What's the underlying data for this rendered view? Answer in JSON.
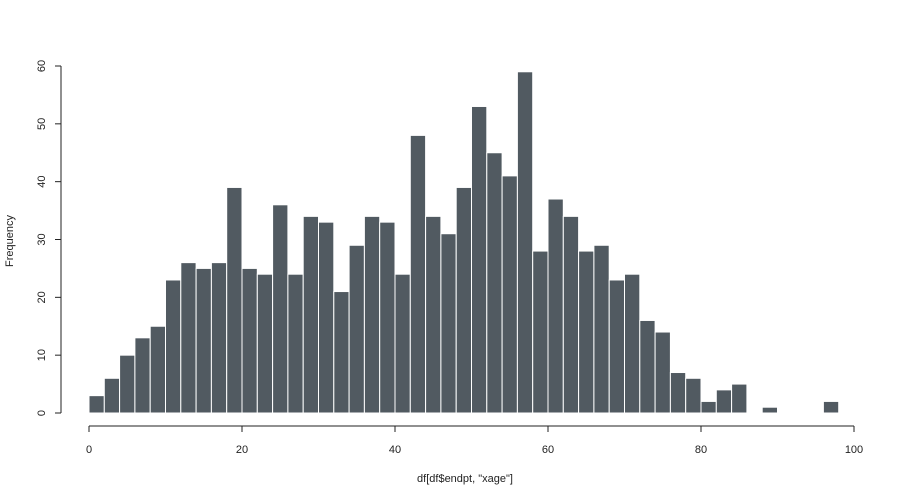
{
  "chart_data": {
    "type": "bar",
    "title": "",
    "xlabel": "df[df$endpt, \"xage\"]",
    "ylabel": "Frequency",
    "xlim": [
      0,
      100
    ],
    "ylim": [
      0,
      60
    ],
    "x_ticks": [
      "0",
      "20",
      "40",
      "60",
      "80",
      "100"
    ],
    "y_ticks": [
      "0",
      "10",
      "20",
      "30",
      "40",
      "50",
      "60"
    ],
    "bin_width": 2,
    "bin_starts": [
      0,
      2,
      4,
      6,
      8,
      10,
      12,
      14,
      16,
      18,
      20,
      22,
      24,
      26,
      28,
      30,
      32,
      34,
      36,
      38,
      40,
      42,
      44,
      46,
      48,
      50,
      52,
      54,
      56,
      58,
      60,
      62,
      64,
      66,
      68,
      70,
      72,
      74,
      76,
      78,
      80,
      82,
      84,
      86,
      88,
      90,
      92,
      94,
      96
    ],
    "values": [
      3,
      6,
      10,
      13,
      15,
      23,
      26,
      25,
      26,
      39,
      25,
      24,
      36,
      24,
      34,
      33,
      21,
      29,
      34,
      33,
      24,
      48,
      34,
      31,
      39,
      53,
      45,
      41,
      59,
      28,
      37,
      34,
      28,
      29,
      23,
      24,
      16,
      14,
      7,
      6,
      2,
      4,
      5,
      0,
      1,
      0,
      0,
      0,
      2
    ],
    "grid": false,
    "bar_color": "#515a61",
    "bar_border_color": "#ffffff"
  }
}
